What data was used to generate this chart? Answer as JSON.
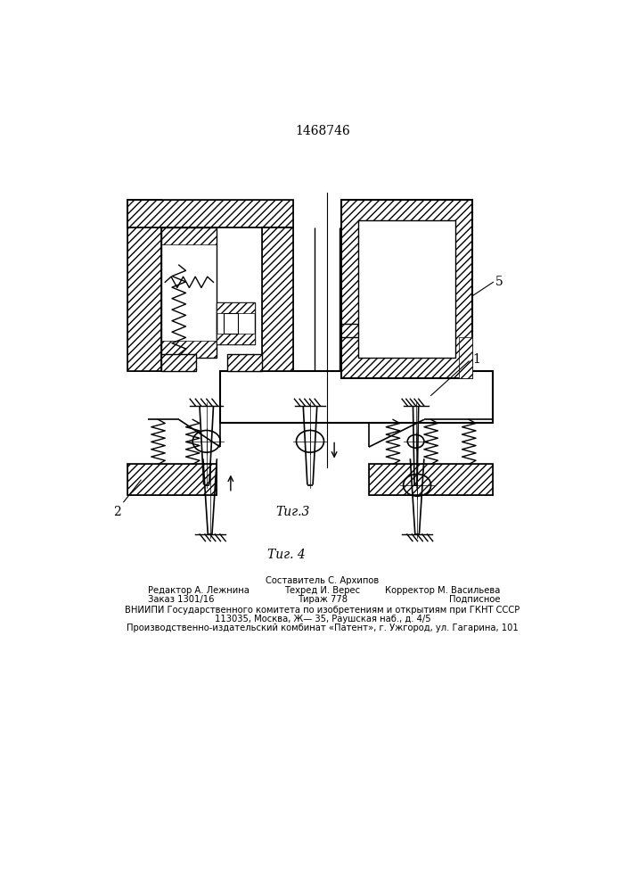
{
  "title": "1468746",
  "label1": "1",
  "label2": "2",
  "label5": "5",
  "fig3_caption": "Τиг.3",
  "fig4_caption": "Τиг. 4",
  "footer_составитель": "Составитель С. Архипов",
  "footer_редактор": "Редактор А. Лежнина",
  "footer_техред": "Техред И. Верес",
  "footer_корректор": "Корректор М. Васильева",
  "footer_заказ": "Заказ 1301/16",
  "footer_тираж": "Тираж 778",
  "footer_подписное": "Подписное",
  "footer_вниипи": "ВНИИПИ Государственного комитета по изобретениям и открытиям при ГКНТ СССР",
  "footer_адрес": "113035, Москва, Ж— 35, Раушская наб., д. 4/5",
  "footer_комбинат": "Производственно-издательский комбинат «Патент», г. Ужгород, ул. Гагарина, 101",
  "bg_color": "#ffffff",
  "line_color": "#000000"
}
